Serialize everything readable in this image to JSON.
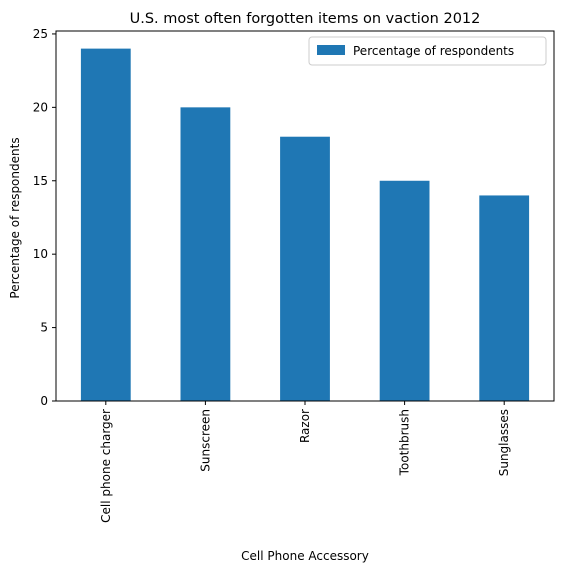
{
  "chart_data": {
    "type": "bar",
    "title": "U.S. most often forgotten items on vaction 2012",
    "xlabel": "Cell Phone Accessory",
    "ylabel": "Percentage of respondents",
    "categories": [
      "Cell phone charger",
      "Sunscreen",
      "Razor",
      "Toothbrush",
      "Sunglasses"
    ],
    "series": [
      {
        "name": "Percentage of respondents",
        "values": [
          24,
          20,
          18,
          15,
          14
        ],
        "color": "#1f77b4"
      }
    ],
    "ylim": [
      0,
      25.2
    ],
    "yticks": [
      0,
      5,
      10,
      15,
      20,
      25
    ],
    "grid": false,
    "legend_position": "top-right"
  }
}
